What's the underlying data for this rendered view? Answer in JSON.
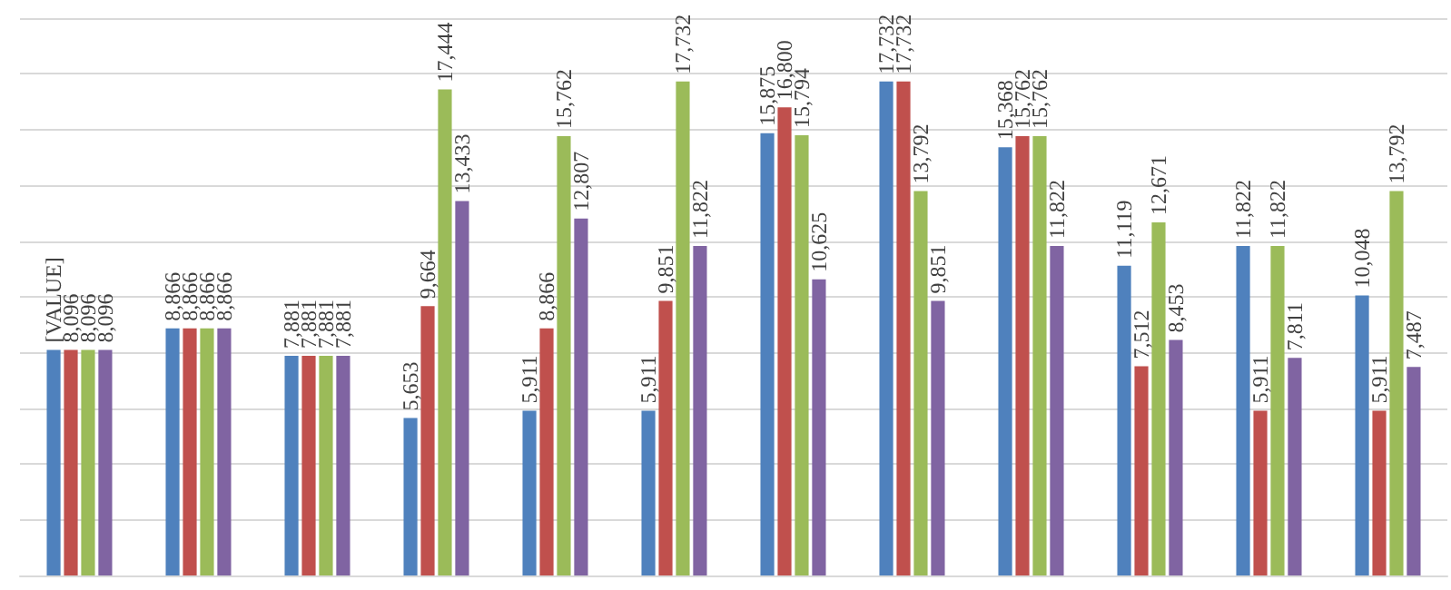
{
  "chart_data": {
    "type": "bar",
    "categories": [
      null,
      null,
      null,
      null,
      null,
      null,
      null,
      null,
      null,
      null,
      null,
      null
    ],
    "series": [
      {
        "color": "#4f81bd",
        "values": [
          8096,
          8866,
          7881,
          5653,
          5911,
          5911,
          15875,
          17732,
          15368,
          11119,
          11822,
          10048
        ],
        "value_labels": [
          "[VALUE]",
          "8,866",
          "7,881",
          "5,653",
          "5,911",
          "5,911",
          "15,875",
          "17,732",
          "15,368",
          "11,119",
          "11,822",
          "10,048"
        ]
      },
      {
        "color": "#c0504d",
        "values": [
          8096,
          8866,
          7881,
          9664,
          8866,
          9851,
          16800,
          17732,
          15762,
          7512,
          5911,
          5911
        ],
        "value_labels": [
          "8,096",
          "8,866",
          "7,881",
          "9,664",
          "8,866",
          "9,851",
          "16,800",
          "17,732",
          "15,762",
          "7,512",
          "5,911",
          "5,911"
        ]
      },
      {
        "color": "#9bbb59",
        "values": [
          8096,
          8866,
          7881,
          17444,
          15762,
          17732,
          15794,
          13792,
          15762,
          12671,
          11822,
          13792
        ],
        "value_labels": [
          "8,096",
          "8,866",
          "7,881",
          "17,444",
          "15,762",
          "17,732",
          "15,794",
          "13,792",
          "15,762",
          "12,671",
          "11,822",
          "13,792"
        ]
      },
      {
        "color": "#8064a2",
        "values": [
          8096,
          8866,
          7881,
          13433,
          12807,
          11822,
          10625,
          9851,
          11822,
          8453,
          7811,
          7487
        ],
        "value_labels": [
          "8,096",
          "8,866",
          "7,881",
          "13,433",
          "12,807",
          "11,822",
          "10,625",
          "9,851",
          "11,822",
          "8,453",
          "7,811",
          "7,487"
        ]
      }
    ],
    "ylim": [
      0,
      20000
    ],
    "yticks": [
      {
        "value": 0,
        "label": null
      },
      {
        "value": 2000,
        "label": null
      },
      {
        "value": 4000,
        "label": null
      },
      {
        "value": 6000,
        "label": null
      },
      {
        "value": 8000,
        "label": null
      },
      {
        "value": 10000,
        "label": null
      },
      {
        "value": 12000,
        "label": null
      },
      {
        "value": 14000,
        "label": null
      },
      {
        "value": 16000,
        "label": null
      },
      {
        "value": 18000,
        "label": null
      },
      {
        "value": 20000,
        "label": null
      }
    ],
    "grid": "y"
  }
}
